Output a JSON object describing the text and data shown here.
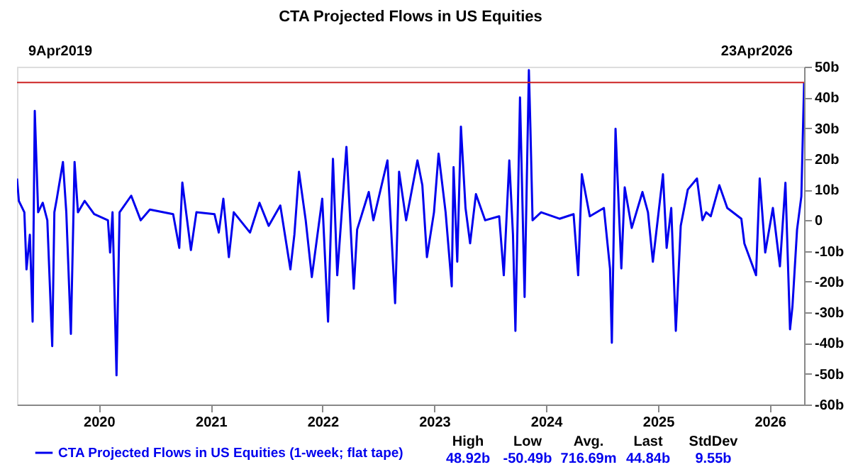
{
  "chart_data": {
    "type": "line",
    "title": "CTA Projected Flows in US Equities",
    "x": [
      "2019-04-09",
      "2019-04-15",
      "2019-05-03",
      "2019-05-10",
      "2019-05-21",
      "2019-05-30",
      "2019-06-06",
      "2019-06-17",
      "2019-07-02",
      "2019-07-17",
      "2019-08-02",
      "2019-08-09",
      "2019-08-17",
      "2019-09-06",
      "2019-09-17",
      "2019-10-02",
      "2019-10-14",
      "2019-10-25",
      "2019-11-16",
      "2019-12-17",
      "2020-01-31",
      "2020-02-07",
      "2020-02-15",
      "2020-02-28",
      "2020-03-09",
      "2020-04-16",
      "2020-05-17",
      "2020-06-16",
      "2020-08-31",
      "2020-09-20",
      "2020-09-30",
      "2020-10-28",
      "2020-11-15",
      "2021-01-13",
      "2021-01-27",
      "2021-02-11",
      "2021-03-01",
      "2021-03-17",
      "2021-05-09",
      "2021-06-09",
      "2021-07-09",
      "2021-08-16",
      "2021-09-18",
      "2021-10-01",
      "2021-10-16",
      "2021-11-07",
      "2021-11-27",
      "2021-12-31",
      "2022-01-19",
      "2022-02-04",
      "2022-02-18",
      "2022-03-20",
      "2022-04-13",
      "2022-04-24",
      "2022-06-01",
      "2022-06-16",
      "2022-08-01",
      "2022-08-26",
      "2022-09-08",
      "2022-10-01",
      "2022-11-07",
      "2022-11-23",
      "2022-12-08",
      "2022-12-31",
      "2023-01-15",
      "2023-02-07",
      "2023-02-27",
      "2023-03-05",
      "2023-03-17",
      "2023-03-29",
      "2023-04-13",
      "2023-04-28",
      "2023-05-17",
      "2023-06-16",
      "2023-08-01",
      "2023-08-16",
      "2023-09-03",
      "2023-09-15",
      "2023-09-23",
      "2023-10-08",
      "2023-10-23",
      "2023-11-06",
      "2023-11-11",
      "2023-11-18",
      "2023-12-16",
      "2024-02-14",
      "2024-03-31",
      "2024-04-15",
      "2024-04-27",
      "2024-05-23",
      "2024-07-08",
      "2024-07-28",
      "2024-08-03",
      "2024-08-15",
      "2024-09-03",
      "2024-09-14",
      "2024-10-07",
      "2024-11-11",
      "2024-11-29",
      "2024-12-15",
      "2025-01-17",
      "2025-01-29",
      "2025-02-13",
      "2025-02-28",
      "2025-03-16",
      "2025-04-08",
      "2025-05-08",
      "2025-05-26",
      "2025-06-07",
      "2025-06-22",
      "2025-07-20",
      "2025-08-15",
      "2025-09-30",
      "2025-10-10",
      "2025-11-17",
      "2025-11-29",
      "2025-12-17",
      "2026-01-11",
      "2026-02-03",
      "2026-02-21",
      "2026-03-08",
      "2026-03-16",
      "2026-03-31",
      "2026-04-14",
      "2026-04-23"
    ],
    "series": [
      {
        "name": "CTA Projected Flows in US Equities (1-week; flat tape)",
        "color": "#0000ee",
        "values": [
          13.6,
          6.3,
          2.6,
          -16,
          -4.7,
          -33,
          35.6,
          2.6,
          5.7,
          0,
          -41,
          2.6,
          7,
          19,
          2.6,
          -37,
          19,
          2.6,
          6.3,
          2,
          0,
          -10.5,
          2.6,
          -50.49,
          2.6,
          8,
          0,
          3.5,
          2,
          -9,
          12.3,
          -9.7,
          2.6,
          2,
          -4,
          7,
          -12,
          2.6,
          -4,
          5.7,
          -1.8,
          4.8,
          -16,
          -4.7,
          15.8,
          0,
          -18.5,
          7,
          -33,
          20,
          -17.9,
          23.9,
          -22.3,
          -3,
          9.2,
          0,
          19.5,
          -27,
          15.8,
          0,
          19.5,
          11.4,
          -12,
          2.6,
          21.7,
          2.6,
          -21.5,
          17.3,
          -13.5,
          30.5,
          4,
          -7.5,
          8.5,
          0,
          1.3,
          -17.9,
          19.5,
          -4.7,
          -36,
          40,
          -25,
          48.92,
          30,
          0,
          2.6,
          0.5,
          2,
          -17.9,
          15,
          1.3,
          4,
          -15.7,
          -39.9,
          29.8,
          -15.7,
          10.7,
          -2.5,
          9.2,
          2.6,
          -13.5,
          15,
          -9,
          4,
          -36,
          -1.8,
          10,
          13.6,
          0,
          2.6,
          1.3,
          11.4,
          4,
          0.5,
          -7.6,
          -17.9,
          13.6,
          -10.5,
          4,
          -15,
          12.2,
          -35.5,
          -28,
          -3,
          7.8,
          44.84
        ]
      }
    ],
    "xlim": [
      "2019-04-09",
      "2026-04-23"
    ],
    "xticks": [
      "2020",
      "2021",
      "2022",
      "2023",
      "2024",
      "2025",
      "2026"
    ],
    "ylim": [
      -60,
      50
    ],
    "yticks": [
      {
        "value": -60,
        "label": "-60b"
      },
      {
        "value": -50,
        "label": "-50b"
      },
      {
        "value": -40,
        "label": "-40b"
      },
      {
        "value": -30,
        "label": "-30b"
      },
      {
        "value": -20,
        "label": "-20b"
      },
      {
        "value": -10,
        "label": "-10b"
      },
      0,
      {
        "value": 10,
        "label": "10b"
      },
      {
        "value": 20,
        "label": "20b"
      },
      {
        "value": 30,
        "label": "30b"
      },
      {
        "value": 40,
        "label": "40b"
      },
      {
        "value": 50,
        "label": "50b"
      }
    ],
    "ref_lines": [
      {
        "axis": "y",
        "value": 44.84,
        "color": "#cc2222"
      }
    ],
    "annotations": [
      "9Apr2019",
      "23Apr2026",
      "High",
      "Low",
      "Avg.",
      "Last",
      "StdDev",
      "48.92b",
      "-50.49b",
      "716.69m",
      "44.84b",
      "9.55b"
    ],
    "grid": false,
    "legend": "bottom",
    "marker": "none",
    "line_style": "solid"
  }
}
